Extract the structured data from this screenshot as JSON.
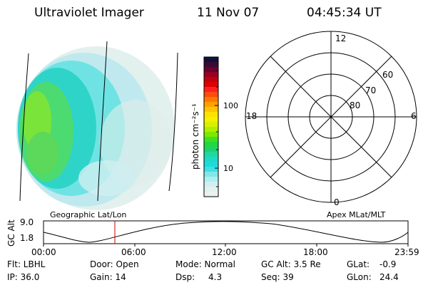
{
  "header": {
    "instrument": "Ultraviolet Imager",
    "date": "11 Nov 07",
    "time": "04:45:34 UT"
  },
  "colorbar": {
    "unit_label": "photon cm⁻²s⁻¹",
    "ticks": [
      "100",
      "10"
    ]
  },
  "polar_plot": {
    "mlt_labels": {
      "top": "12",
      "left": "18",
      "right": "6",
      "bottom": "0"
    },
    "lat_labels": [
      "60",
      "70",
      "80"
    ]
  },
  "track": {
    "left_title": "Geographic Lat/Lon",
    "right_title": "Apex MLat/MLT",
    "y_axis_label": "GC Alt",
    "y_ticks": [
      "9.0",
      "1.8"
    ],
    "x_ticks": [
      "00:00",
      "06:00",
      "12:00",
      "18:00",
      "23:59"
    ]
  },
  "status": {
    "row1": [
      "Flt: LBHL",
      "Door: Open",
      "Mode: Normal",
      "GC Alt: 3.5 Re",
      "GLat:",
      "-0.9"
    ],
    "row2": [
      "IP: 36.0",
      "Gain: 14",
      "Dsp:",
      "4.3",
      "Seq: 39",
      "GLon:",
      "24.4"
    ]
  },
  "colors": {
    "accent_red": "#cc0000"
  }
}
